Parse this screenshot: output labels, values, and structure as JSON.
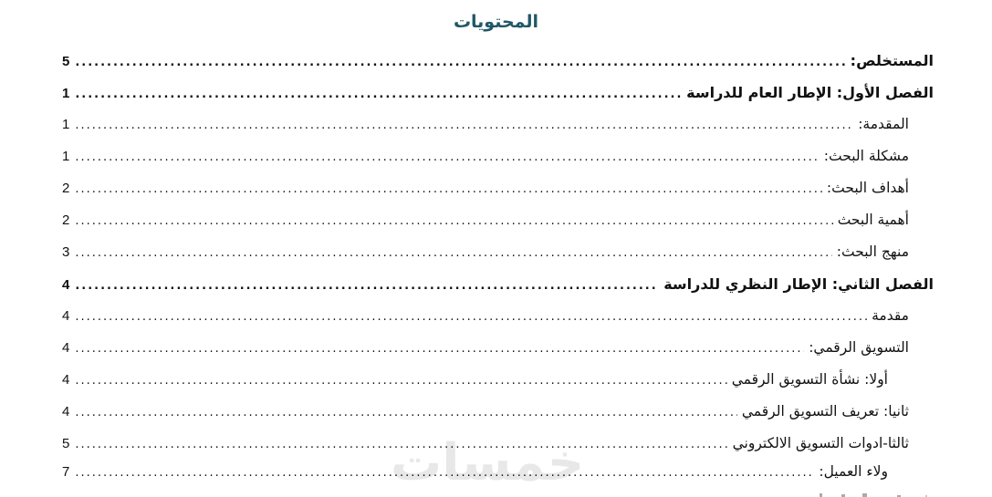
{
  "page": {
    "title": "المحتويات",
    "title_color": "#205867",
    "text_color": "#111111",
    "watermark": "خمسات",
    "watermark_color": "#e8e8e8",
    "direction": "rtl"
  },
  "toc": {
    "entries": [
      {
        "label": "المستخلص:",
        "page": "5",
        "bold": true,
        "indent": 0
      },
      {
        "label": "الفصل الأول: الإطار العام للدراسة",
        "page": "1",
        "bold": true,
        "indent": 0
      },
      {
        "label": "المقدمة:",
        "page": "1",
        "bold": false,
        "indent": 1
      },
      {
        "label": "مشكلة البحث:",
        "page": "1",
        "bold": false,
        "indent": 1
      },
      {
        "label": "أهداف البحث:",
        "page": "2",
        "bold": false,
        "indent": 1
      },
      {
        "label": "أهمية البحث",
        "page": "2",
        "bold": false,
        "indent": 1
      },
      {
        "label": "منهج البحث:",
        "page": "3",
        "bold": false,
        "indent": 1
      },
      {
        "label": "الفصل الثاني: الإطار النظري للدراسة",
        "page": "4",
        "bold": true,
        "indent": 0
      },
      {
        "label": "مقدمة",
        "page": "4",
        "bold": false,
        "indent": 1
      },
      {
        "label": "التسويق الرقمي:",
        "page": "4",
        "bold": false,
        "indent": 1
      },
      {
        "label": "أولا: نشأة التسويق الرقمي",
        "page": "4",
        "bold": false,
        "indent": 2
      },
      {
        "label": "ثانيا: تعريف التسويق الرقمي",
        "page": "4",
        "bold": false,
        "indent": 1
      },
      {
        "label": "ثالثا-ادوات التسويق الالكتروني",
        "page": "5",
        "bold": false,
        "indent": 1
      },
      {
        "label": "ولاء العميل:",
        "page": "7",
        "bold": false,
        "indent": 2
      }
    ],
    "partial_next_line_visible": true
  }
}
